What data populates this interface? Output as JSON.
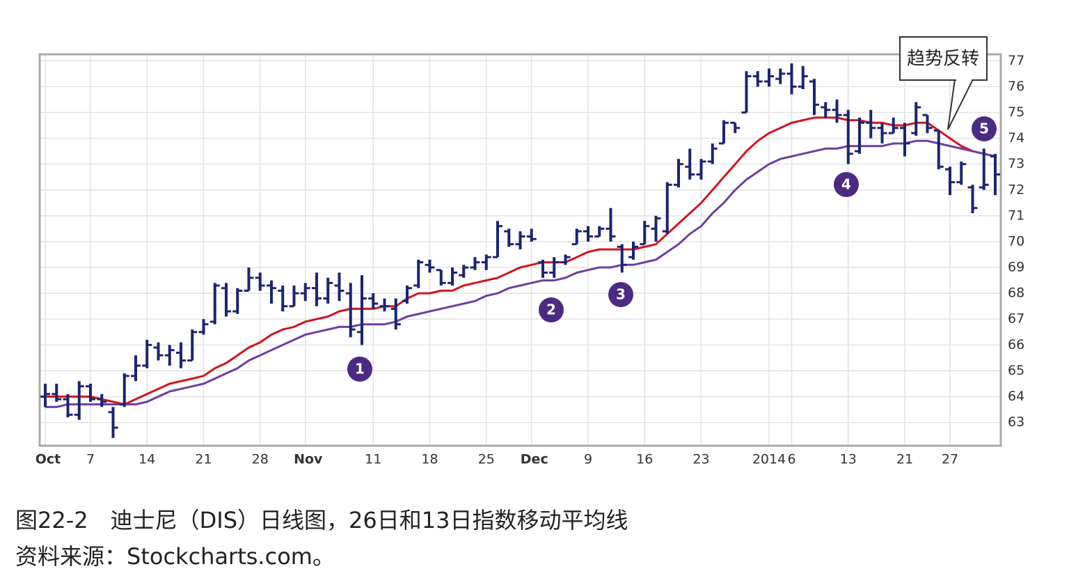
{
  "chart_data": {
    "type": "ohlc",
    "categories": [
      "Oct",
      null,
      null,
      null,
      "7",
      null,
      null,
      null,
      null,
      "14",
      null,
      null,
      null,
      null,
      "21",
      null,
      null,
      null,
      null,
      "28",
      null,
      null,
      null,
      "Nov",
      null,
      null,
      null,
      null,
      null,
      "11",
      null,
      null,
      null,
      null,
      "18",
      null,
      null,
      null,
      null,
      "25",
      null,
      null,
      null,
      "Dec",
      null,
      null,
      null,
      null,
      "9",
      null,
      null,
      null,
      null,
      "16",
      null,
      null,
      null,
      null,
      "23",
      null,
      null,
      null,
      null,
      null,
      "2014",
      null,
      "6",
      null,
      null,
      null,
      null,
      "13",
      null,
      null,
      null,
      null,
      "21",
      null,
      null,
      null,
      "27",
      null,
      null,
      null,
      null
    ],
    "open": [
      64.0,
      64.1,
      63.9,
      63.3,
      64.4,
      63.9,
      63.4,
      63.7,
      64.8,
      65.2,
      65.9,
      65.6,
      65.7,
      65.4,
      66.5,
      66.9,
      68.2,
      67.3,
      68.1,
      68.6,
      68.3,
      68.1,
      67.5,
      68.0,
      68.2,
      67.8,
      68.3,
      68.0,
      66.5,
      67.8,
      67.5,
      67.4,
      67.7,
      68.3,
      69.1,
      68.9,
      68.4,
      68.7,
      69.0,
      69.2,
      69.4,
      70.4,
      69.9,
      70.2,
      69.2,
      68.8,
      69.2,
      69.9,
      70.4,
      70.2,
      70.5,
      69.8,
      69.4,
      69.9,
      70.5,
      70.4,
      72.2,
      72.9,
      72.6,
      73.1,
      73.8,
      74.6,
      75.0,
      76.4,
      76.2,
      76.3,
      76.5,
      76.0,
      76.2,
      75.2,
      75.1,
      74.9,
      73.5,
      74.6,
      74.4,
      74.2,
      74.4,
      74.2,
      74.9,
      74.3,
      72.8,
      72.3,
      72.1,
      72.1,
      73.3
    ],
    "high": [
      64.5,
      64.5,
      64.1,
      64.6,
      64.5,
      64.1,
      63.6,
      64.9,
      65.6,
      66.2,
      66.1,
      66.0,
      66.1,
      66.6,
      67.0,
      68.4,
      68.4,
      68.2,
      69.0,
      68.8,
      68.5,
      68.3,
      68.3,
      68.4,
      68.8,
      68.6,
      68.8,
      68.4,
      68.7,
      68.0,
      67.8,
      67.8,
      68.3,
      69.3,
      69.3,
      68.9,
      69.0,
      69.1,
      69.4,
      69.5,
      70.8,
      70.5,
      70.4,
      70.5,
      69.3,
      69.4,
      69.5,
      70.5,
      70.6,
      70.6,
      71.3,
      69.9,
      70.0,
      70.8,
      71.0,
      72.3,
      73.2,
      73.6,
      73.2,
      73.8,
      74.7,
      74.6,
      76.6,
      76.6,
      76.7,
      76.7,
      76.9,
      76.8,
      76.3,
      75.4,
      75.5,
      75.1,
      74.8,
      75.1,
      74.6,
      74.8,
      74.6,
      75.4,
      74.9,
      74.3,
      72.9,
      73.1,
      72.2,
      73.6,
      73.4
    ],
    "low": [
      63.6,
      63.8,
      63.2,
      63.1,
      63.8,
      63.6,
      62.4,
      63.6,
      64.6,
      65.1,
      65.4,
      65.2,
      65.1,
      65.4,
      66.4,
      66.8,
      67.1,
      67.2,
      68.1,
      68.1,
      67.6,
      67.3,
      67.5,
      67.7,
      67.5,
      67.6,
      67.7,
      66.3,
      66.0,
      67.4,
      67.3,
      66.6,
      67.6,
      68.2,
      68.8,
      68.3,
      68.3,
      68.6,
      68.9,
      68.9,
      69.4,
      69.8,
      69.7,
      70.0,
      68.6,
      68.6,
      69.1,
      69.9,
      70.0,
      70.2,
      70.0,
      68.8,
      69.3,
      69.9,
      70.0,
      70.3,
      72.1,
      72.4,
      72.4,
      73.0,
      73.8,
      74.2,
      75.0,
      76.0,
      76.0,
      76.1,
      75.7,
      75.9,
      74.9,
      74.8,
      74.6,
      73.0,
      73.4,
      74.0,
      73.8,
      74.2,
      73.3,
      74.1,
      74.2,
      72.8,
      71.8,
      72.2,
      71.1,
      72.0,
      71.8
    ],
    "close": [
      64.1,
      63.9,
      63.3,
      64.4,
      63.9,
      63.8,
      62.8,
      64.8,
      65.2,
      66.0,
      65.6,
      65.8,
      65.4,
      66.5,
      66.8,
      68.3,
      67.3,
      68.1,
      68.6,
      68.3,
      68.2,
      67.5,
      68.0,
      68.2,
      67.8,
      68.4,
      68.1,
      66.6,
      67.8,
      67.6,
      67.5,
      66.8,
      68.2,
      69.2,
      69.0,
      68.4,
      68.8,
      69.0,
      69.2,
      69.4,
      70.6,
      69.9,
      70.2,
      70.1,
      68.8,
      69.2,
      69.4,
      70.4,
      70.2,
      70.5,
      70.2,
      69.1,
      69.8,
      70.6,
      70.9,
      72.2,
      73.0,
      72.6,
      73.1,
      73.6,
      74.6,
      74.4,
      76.4,
      76.2,
      76.4,
      76.5,
      76.0,
      76.4,
      75.3,
      75.1,
      74.9,
      73.4,
      74.6,
      74.4,
      74.2,
      74.4,
      73.8,
      75.2,
      74.4,
      72.9,
      72.3,
      73.0,
      71.3,
      72.2,
      72.6
    ],
    "color": "#1c2470",
    "lines": [
      {
        "color": "#d2141c",
        "values": [
          64.0,
          64.0,
          64.0,
          64.0,
          64.0,
          63.9,
          63.8,
          63.7,
          63.9,
          64.1,
          64.3,
          64.5,
          64.6,
          64.7,
          64.8,
          65.1,
          65.3,
          65.6,
          65.9,
          66.1,
          66.4,
          66.6,
          66.7,
          66.9,
          67.0,
          67.1,
          67.3,
          67.4,
          67.4,
          67.4,
          67.5,
          67.5,
          67.8,
          68.0,
          68.0,
          68.1,
          68.1,
          68.3,
          68.4,
          68.5,
          68.6,
          68.8,
          69.0,
          69.1,
          69.2,
          69.2,
          69.2,
          69.4,
          69.6,
          69.7,
          69.7,
          69.7,
          69.7,
          69.8,
          69.9,
          70.3,
          70.7,
          71.1,
          71.5,
          72.0,
          72.5,
          73.0,
          73.5,
          73.9,
          74.2,
          74.4,
          74.6,
          74.7,
          74.8,
          74.8,
          74.8,
          74.7,
          74.7,
          74.6,
          74.6,
          74.5,
          74.5,
          74.6,
          74.6,
          74.3,
          74.0,
          73.7,
          73.5,
          73.4,
          73.3
        ]
      },
      {
        "color": "#6b3fa0",
        "values": [
          63.6,
          63.6,
          63.7,
          63.7,
          63.7,
          63.7,
          63.7,
          63.7,
          63.7,
          63.8,
          64.0,
          64.2,
          64.3,
          64.4,
          64.5,
          64.7,
          64.9,
          65.1,
          65.4,
          65.6,
          65.8,
          66.0,
          66.2,
          66.4,
          66.5,
          66.6,
          66.7,
          66.7,
          66.8,
          66.8,
          66.8,
          66.9,
          67.1,
          67.2,
          67.3,
          67.4,
          67.5,
          67.6,
          67.7,
          67.9,
          68.0,
          68.2,
          68.3,
          68.4,
          68.5,
          68.5,
          68.6,
          68.8,
          68.9,
          69.0,
          69.0,
          69.1,
          69.1,
          69.2,
          69.3,
          69.6,
          69.9,
          70.3,
          70.6,
          71.1,
          71.5,
          72.0,
          72.4,
          72.7,
          73.0,
          73.2,
          73.3,
          73.4,
          73.5,
          73.6,
          73.6,
          73.7,
          73.7,
          73.7,
          73.7,
          73.8,
          73.8,
          73.9,
          73.9,
          73.8,
          73.7,
          73.6,
          73.5,
          73.4,
          73.3
        ]
      }
    ],
    "ylim": [
      62.1,
      77.25
    ],
    "yticks": [
      63,
      64,
      65,
      66,
      67,
      68,
      69,
      70,
      71,
      72,
      73,
      74,
      75,
      76,
      77
    ],
    "grid": true,
    "annotations": [
      "1",
      "2",
      "3",
      "4",
      "5"
    ],
    "callout": "趋势反转"
  },
  "caption": "图22-2　迪士尼（DIS）日线图，26日和13日指数移动平均线",
  "source": "资料来源：Stockcharts.com。"
}
